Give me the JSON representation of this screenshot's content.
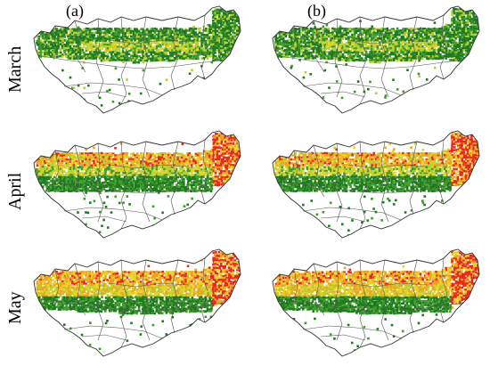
{
  "columns": [
    {
      "label": "(a)"
    },
    {
      "label": "(b)"
    }
  ],
  "rows": [
    {
      "label": "March"
    },
    {
      "label": "April"
    },
    {
      "label": "May"
    }
  ],
  "colors": {
    "dark_green": "#1f7a1f",
    "green": "#3f9c2a",
    "yellow_green": "#b7cf2a",
    "yellow": "#e8d22a",
    "orange": "#f0a020",
    "red": "#e8281c",
    "boundary": "#555555"
  }
}
